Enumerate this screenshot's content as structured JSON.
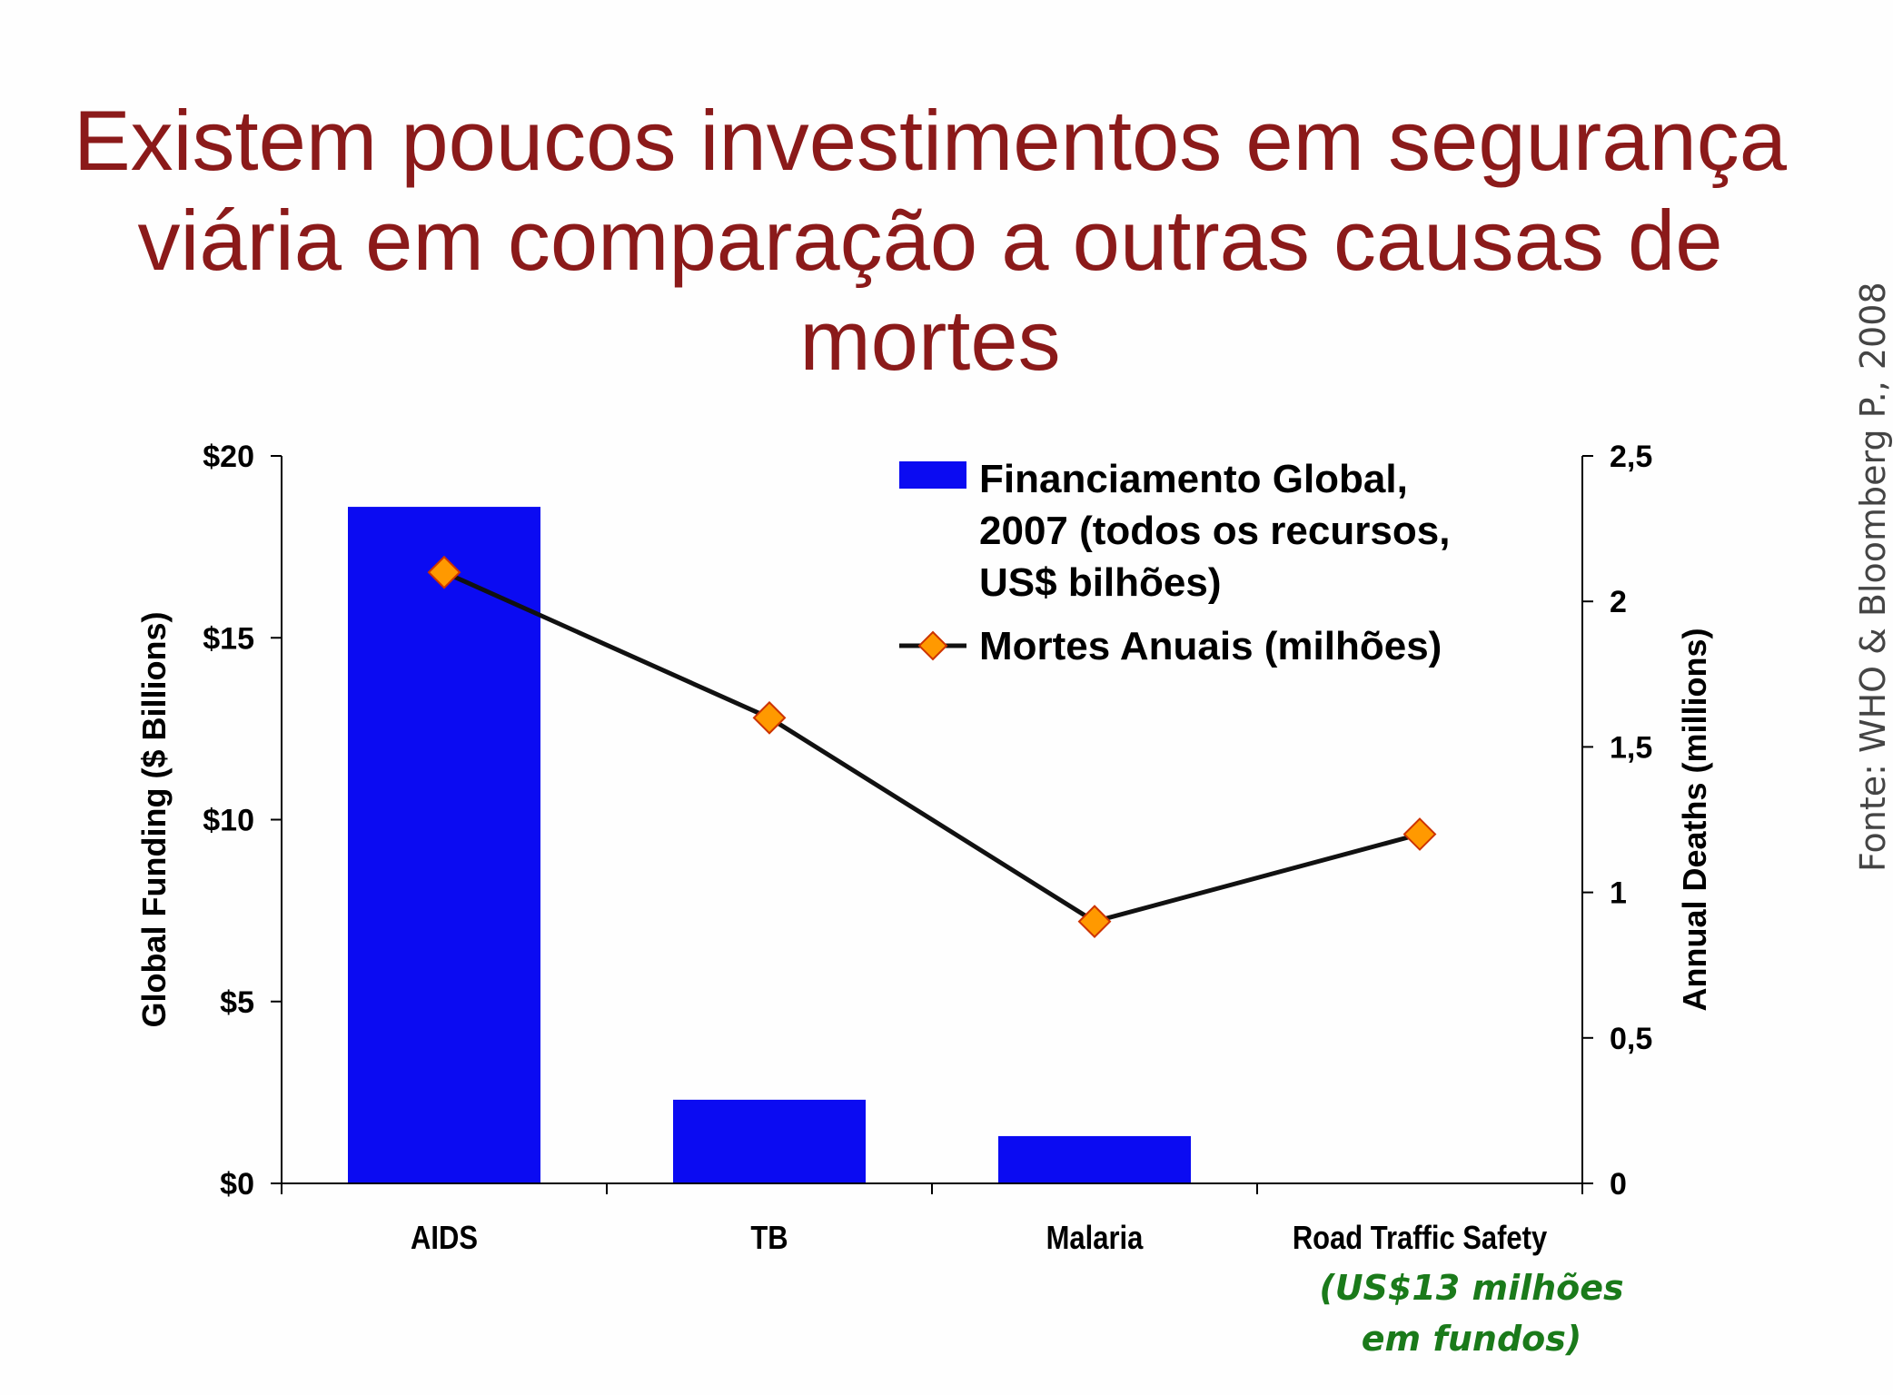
{
  "title_lines": [
    "Existem poucos investimentos em segurança",
    "viária em comparação a outras causas de mortes"
  ],
  "source": "Fonte: WHO & Bloomberg P., 2008",
  "note_lines": [
    "(US$13 milhões",
    "em fundos)"
  ],
  "colors": {
    "title": "#8b1a1a",
    "bar": "#0b0bf2",
    "line": "#111111",
    "marker_fill": "#ff9900",
    "marker_stroke": "#cc3300",
    "note": "#1a7a1a"
  },
  "chart_data": {
    "type": "bar",
    "categories": [
      "AIDS",
      "TB",
      "Malaria",
      "Road Traffic Safety"
    ],
    "series": [
      {
        "name": "Financiamento Global, 2007 (todos os recursos, US$ bilhões)",
        "legend_lines": [
          "Financiamento Global,",
          "2007 (todos os recursos,",
          "US$ bilhões)"
        ],
        "type": "bar",
        "axis": "left",
        "values": [
          18.6,
          2.3,
          1.3,
          0.013
        ]
      },
      {
        "name": "Mortes Anuais (milhões)",
        "legend_lines": [
          "Mortes Anuais (milhões)"
        ],
        "type": "line",
        "axis": "right",
        "values": [
          2.1,
          1.6,
          0.9,
          1.2
        ]
      }
    ],
    "ylabel": "Global Funding ($ Billions)",
    "ylabel_right": "Annual Deaths (millions)",
    "ylim": [
      0,
      20
    ],
    "ylim_right": [
      0,
      2.5
    ],
    "yticks": [
      0,
      5,
      10,
      15,
      20
    ],
    "yticks_labels": [
      "$0",
      "$5",
      "$10",
      "$15",
      "$20"
    ],
    "yticks_right": [
      0,
      0.5,
      1,
      1.5,
      2,
      2.5
    ],
    "yticks_right_labels": [
      "0",
      "0,5",
      "1",
      "1,5",
      "2",
      "2,5"
    ],
    "legend_position": "top-right",
    "grid": false
  }
}
